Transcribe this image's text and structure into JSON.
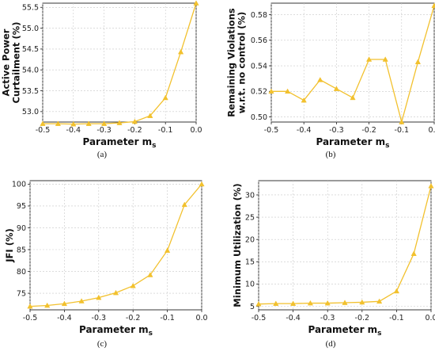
{
  "figure": {
    "series_color": "#f2c12e"
  },
  "chart_data": [
    {
      "type": "line",
      "caption": "(a)",
      "xlabel": "Parameter m",
      "xlabel_sub": "s",
      "ylabel_lines": [
        "Active Power",
        "Curtailment (%)"
      ],
      "xlim": [
        -0.5,
        0.0
      ],
      "ylim": [
        52.75,
        55.6
      ],
      "xticks": [
        "-0.5",
        "-0.4",
        "-0.3",
        "-0.2",
        "-0.1",
        "0.0"
      ],
      "xtick_values": [
        -0.5,
        -0.4,
        -0.3,
        -0.2,
        -0.1,
        0.0
      ],
      "yticks": [
        "53.0",
        "53.5",
        "54.0",
        "54.5",
        "55.0",
        "55.5"
      ],
      "ytick_values": [
        53.0,
        53.5,
        54.0,
        54.5,
        55.0,
        55.5
      ],
      "grid": true,
      "marker": "triangle",
      "x": [
        -0.5,
        -0.45,
        -0.4,
        -0.35,
        -0.3,
        -0.25,
        -0.2,
        -0.15,
        -0.1,
        -0.05,
        0.0
      ],
      "y": [
        52.71,
        52.71,
        52.7,
        52.71,
        52.71,
        52.73,
        52.76,
        52.9,
        53.33,
        54.43,
        55.6
      ]
    },
    {
      "type": "line",
      "caption": "(b)",
      "xlabel": "Parameter m",
      "xlabel_sub": "s",
      "ylabel_lines": [
        "Remaining Violations",
        "w.r.t. no control (%)"
      ],
      "xlim": [
        -0.5,
        0.0
      ],
      "ylim": [
        0.496,
        0.589
      ],
      "xticks": [
        "-0.5",
        "-0.4",
        "-0.3",
        "-0.2",
        "-0.1",
        "0.0"
      ],
      "xtick_values": [
        -0.5,
        -0.4,
        -0.3,
        -0.2,
        -0.1,
        0.0
      ],
      "yticks": [
        "0.50",
        "0.52",
        "0.54",
        "0.56",
        "0.58"
      ],
      "ytick_values": [
        0.5,
        0.52,
        0.54,
        0.56,
        0.58
      ],
      "grid": true,
      "marker": "triangle",
      "x": [
        -0.5,
        -0.45,
        -0.4,
        -0.35,
        -0.3,
        -0.25,
        -0.2,
        -0.15,
        -0.1,
        -0.05,
        0.0
      ],
      "y": [
        0.52,
        0.52,
        0.513,
        0.529,
        0.522,
        0.515,
        0.545,
        0.545,
        0.496,
        0.543,
        0.587
      ]
    },
    {
      "type": "line",
      "caption": "(c)",
      "xlabel": "Parameter m",
      "xlabel_sub": "s",
      "ylabel_lines": [
        "JFI (%)"
      ],
      "xlim": [
        -0.5,
        0.0
      ],
      "ylim": [
        71.2,
        100.8
      ],
      "xticks": [
        "-0.5",
        "-0.4",
        "-0.3",
        "-0.2",
        "-0.1",
        "0.0"
      ],
      "xtick_values": [
        -0.5,
        -0.4,
        -0.3,
        -0.2,
        -0.1,
        0.0
      ],
      "yticks": [
        "75",
        "80",
        "85",
        "90",
        "95",
        "100"
      ],
      "ytick_values": [
        75,
        80,
        85,
        90,
        95,
        100
      ],
      "grid": true,
      "marker": "triangle",
      "x": [
        -0.5,
        -0.45,
        -0.4,
        -0.35,
        -0.3,
        -0.25,
        -0.2,
        -0.15,
        -0.1,
        -0.05,
        0.0
      ],
      "y": [
        72.0,
        72.2,
        72.6,
        73.2,
        74.0,
        75.1,
        76.7,
        79.2,
        84.8,
        95.3,
        100.0
      ]
    },
    {
      "type": "line",
      "caption": "(d)",
      "xlabel": "Parameter m",
      "xlabel_sub": "s",
      "ylabel_lines": [
        "Minimum Utilization (%)"
      ],
      "xlim": [
        -0.5,
        0.0
      ],
      "ylim": [
        4.2,
        33.2
      ],
      "xticks": [
        "-0.5",
        "-0.4",
        "-0.3",
        "-0.2",
        "-0.1",
        "0.0"
      ],
      "xtick_values": [
        -0.5,
        -0.4,
        -0.3,
        -0.2,
        -0.1,
        0.0
      ],
      "yticks": [
        "5",
        "10",
        "15",
        "20",
        "25",
        "30"
      ],
      "ytick_values": [
        5,
        10,
        15,
        20,
        25,
        30
      ],
      "grid": true,
      "marker": "triangle",
      "x": [
        -0.5,
        -0.45,
        -0.4,
        -0.35,
        -0.3,
        -0.25,
        -0.2,
        -0.15,
        -0.1,
        -0.05,
        0.0
      ],
      "y": [
        5.5,
        5.6,
        5.6,
        5.7,
        5.7,
        5.8,
        5.9,
        6.1,
        8.4,
        16.8,
        32.0
      ]
    }
  ]
}
